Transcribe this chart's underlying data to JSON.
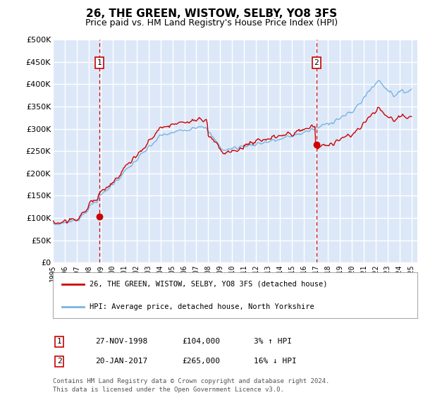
{
  "title": "26, THE GREEN, WISTOW, SELBY, YO8 3FS",
  "subtitle": "Price paid vs. HM Land Registry's House Price Index (HPI)",
  "title_fontsize": 11,
  "subtitle_fontsize": 9,
  "ylim": [
    0,
    500000
  ],
  "yticks": [
    0,
    50000,
    100000,
    150000,
    200000,
    250000,
    300000,
    350000,
    400000,
    450000,
    500000
  ],
  "ytick_labels": [
    "£0",
    "£50K",
    "£100K",
    "£150K",
    "£200K",
    "£250K",
    "£300K",
    "£350K",
    "£400K",
    "£450K",
    "£500K"
  ],
  "xlim_start": 1995,
  "xlim_end": 2025.5,
  "xtick_years": [
    1995,
    1996,
    1997,
    1998,
    1999,
    2000,
    2001,
    2002,
    2003,
    2004,
    2005,
    2006,
    2007,
    2008,
    2009,
    2010,
    2011,
    2012,
    2013,
    2014,
    2015,
    2016,
    2017,
    2018,
    2019,
    2020,
    2021,
    2022,
    2023,
    2024,
    2025
  ],
  "plot_bg_color": "#dce8f8",
  "grid_color": "#ffffff",
  "hpi_line_color": "#7ab3e0",
  "price_line_color": "#cc0000",
  "marker_color": "#cc0000",
  "vline_color": "#cc0000",
  "p1_x": 1998.9,
  "p1_y": 104000,
  "p2_x": 2017.05,
  "p2_y": 265000,
  "legend_line1": "26, THE GREEN, WISTOW, SELBY, YO8 3FS (detached house)",
  "legend_line2": "HPI: Average price, detached house, North Yorkshire",
  "table_rows": [
    {
      "label": "1",
      "date": "27-NOV-1998",
      "price": "£104,000",
      "hpi": "3% ↑ HPI"
    },
    {
      "label": "2",
      "date": "20-JAN-2017",
      "price": "£265,000",
      "hpi": "16% ↓ HPI"
    }
  ],
  "footer": "Contains HM Land Registry data © Crown copyright and database right 2024.\nThis data is licensed under the Open Government Licence v3.0."
}
